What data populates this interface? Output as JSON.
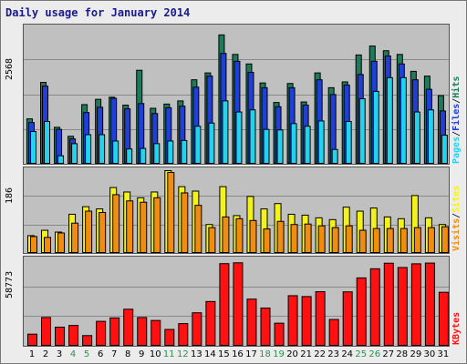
{
  "title": "Daily usage for January 2014",
  "colors": {
    "hits": "#1f7a5a",
    "files": "#1f3fd8",
    "pages": "#22d3f0",
    "visits": "#f08c10",
    "sites": "#f4f21c",
    "kbytes": "#ff1111",
    "weekend_label": "#2f8f4f"
  },
  "legend": {
    "top": {
      "pages": "Pages",
      "files": "Files",
      "hits": "Hits",
      "sep": "/"
    },
    "middle": {
      "visits": "Visits",
      "sites": "Sites",
      "sep": "/"
    },
    "bottom": {
      "kbytes": "KBytes"
    }
  },
  "chart_data": [
    {
      "type": "bar",
      "title": "Daily usage for January 2014",
      "ymax_label": "2568",
      "ylim": [
        0,
        2568
      ],
      "categories": [
        "1",
        "2",
        "3",
        "4",
        "5",
        "6",
        "7",
        "8",
        "9",
        "10",
        "11",
        "12",
        "13",
        "14",
        "15",
        "16",
        "17",
        "18",
        "19",
        "20",
        "21",
        "22",
        "23",
        "24",
        "25",
        "26",
        "27",
        "28",
        "29",
        "30",
        "31"
      ],
      "weekend_days": [
        4,
        5,
        11,
        12,
        18,
        19,
        25,
        26
      ],
      "series": [
        {
          "name": "Hits",
          "values": [
            860,
            1550,
            700,
            530,
            1130,
            1230,
            1270,
            1120,
            1780,
            1060,
            1140,
            1200,
            1600,
            1730,
            2450,
            2080,
            1900,
            1540,
            1170,
            1530,
            1180,
            1730,
            1450,
            1560,
            2070,
            2240,
            2150,
            2080,
            1760,
            1670,
            1300
          ]
        },
        {
          "name": "Files",
          "values": [
            790,
            1480,
            660,
            480,
            980,
            1080,
            1250,
            1050,
            1150,
            960,
            1070,
            1100,
            1460,
            1670,
            2100,
            1950,
            1740,
            1450,
            1090,
            1450,
            1120,
            1600,
            1320,
            1500,
            1700,
            1950,
            2050,
            1900,
            1600,
            1420,
            1010
          ]
        },
        {
          "name": "Pages",
          "values": [
            620,
            810,
            160,
            390,
            560,
            560,
            440,
            290,
            300,
            390,
            440,
            450,
            720,
            780,
            1200,
            990,
            1030,
            660,
            650,
            770,
            720,
            820,
            280,
            810,
            1240,
            1380,
            1640,
            1640,
            990,
            1030,
            550
          ]
        }
      ]
    },
    {
      "type": "bar",
      "ymax_label": "186",
      "ylim": [
        0,
        186
      ],
      "categories": [
        "1",
        "2",
        "3",
        "4",
        "5",
        "6",
        "7",
        "8",
        "9",
        "10",
        "11",
        "12",
        "13",
        "14",
        "15",
        "16",
        "17",
        "18",
        "19",
        "20",
        "21",
        "22",
        "23",
        "24",
        "25",
        "26",
        "27",
        "28",
        "29",
        "30",
        "31"
      ],
      "series": [
        {
          "name": "Sites",
          "values": [
            40,
            52,
            48,
            88,
            105,
            100,
            148,
            138,
            125,
            138,
            186,
            150,
            140,
            65,
            150,
            85,
            128,
            100,
            112,
            88,
            86,
            80,
            76,
            104,
            95,
            102,
            82,
            78,
            130,
            80,
            65
          ]
        },
        {
          "name": "Visits",
          "values": [
            38,
            36,
            46,
            68,
            95,
            92,
            132,
            118,
            115,
            125,
            182,
            136,
            108,
            58,
            82,
            78,
            74,
            55,
            72,
            65,
            66,
            62,
            58,
            62,
            52,
            56,
            56,
            56,
            58,
            58,
            60
          ]
        }
      ]
    },
    {
      "type": "bar",
      "ymax_label": "58773",
      "ylim": [
        0,
        58773
      ],
      "categories": [
        "1",
        "2",
        "3",
        "4",
        "5",
        "6",
        "7",
        "8",
        "9",
        "10",
        "11",
        "12",
        "13",
        "14",
        "15",
        "16",
        "17",
        "18",
        "19",
        "20",
        "21",
        "22",
        "23",
        "24",
        "25",
        "26",
        "27",
        "28",
        "29",
        "30",
        "31"
      ],
      "series": [
        {
          "name": "KBytes",
          "values": [
            8500,
            20200,
            13400,
            14600,
            7500,
            17500,
            19900,
            26000,
            20200,
            18100,
            11800,
            15900,
            23500,
            31400,
            58000,
            58600,
            33100,
            26800,
            16200,
            35500,
            34900,
            38300,
            18800,
            38200,
            48000,
            54400,
            58300,
            55300,
            57900,
            58400,
            37900
          ]
        }
      ]
    }
  ]
}
